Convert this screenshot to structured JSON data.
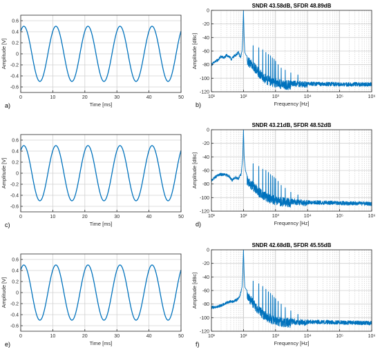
{
  "chart_data": [
    {
      "panel": "a)",
      "type": "line",
      "title": "",
      "xlabel": "Time [ms]",
      "ylabel": "Amplitude [V]",
      "xlim": [
        0,
        50
      ],
      "ylim": [
        -0.7,
        0.7
      ],
      "xticks": [
        0,
        10,
        20,
        30,
        40,
        50
      ],
      "yticks": [
        -0.6,
        -0.4,
        -0.2,
        0,
        0.2,
        0.4,
        0.6
      ],
      "grid": true,
      "series": [
        {
          "kind": "sine",
          "amplitude": 0.5,
          "frequency_hz": 100,
          "phase_deg": 55,
          "x_start": 0,
          "x_end": 50
        }
      ]
    },
    {
      "panel": "b)",
      "type": "line",
      "title": "SNDR 43.58dB, SFDR 48.89dB",
      "xlabel": "Frequency [Hz]",
      "ylabel": "Amplitude [dBc]",
      "xscale": "log",
      "xlim": [
        10,
        1000000
      ],
      "ylim": [
        -120,
        0
      ],
      "xticks": [
        "10¹",
        "10²",
        "10³",
        "10⁴",
        "10⁵",
        "10⁶"
      ],
      "yticks": [
        -120,
        -100,
        -80,
        -60,
        -40,
        -20,
        0
      ],
      "grid": true,
      "series": [
        {
          "profile": [
            [
              10,
              -80
            ],
            [
              12,
              -77
            ],
            [
              16,
              -73
            ],
            [
              20,
              -68
            ],
            [
              25,
              -70
            ],
            [
              30,
              -66
            ],
            [
              35,
              -68
            ],
            [
              42,
              -72
            ],
            [
              50,
              -68
            ],
            [
              60,
              -65
            ],
            [
              70,
              -62
            ],
            [
              80,
              -70
            ],
            [
              90,
              -60
            ],
            [
              95,
              -40
            ],
            [
              100,
              0
            ],
            [
              105,
              -40
            ],
            [
              110,
              -62
            ],
            [
              120,
              -66
            ],
            [
              150,
              -70
            ],
            [
              200,
              -75
            ],
            [
              300,
              -85
            ],
            [
              500,
              -95
            ],
            [
              1000,
              -100
            ],
            [
              2000,
              -103
            ],
            [
              5000,
              -104
            ],
            [
              10000,
              -105
            ],
            [
              100000,
              -106
            ],
            [
              1000000,
              -106
            ]
          ],
          "spurs": [
            [
              200,
              -52
            ],
            [
              300,
              -55
            ],
            [
              400,
              -58
            ],
            [
              500,
              -62
            ],
            [
              600,
              -65
            ],
            [
              700,
              -67
            ],
            [
              800,
              -70
            ],
            [
              900,
              -72
            ],
            [
              1000,
              -75
            ],
            [
              1200,
              -80
            ],
            [
              1500,
              -85
            ],
            [
              2000,
              -88
            ],
            [
              3000,
              -92
            ],
            [
              5000,
              -95
            ]
          ]
        }
      ]
    },
    {
      "panel": "c)",
      "type": "line",
      "title": "",
      "xlabel": "Time [ms]",
      "ylabel": "Amplitude [V]",
      "xlim": [
        0,
        50
      ],
      "ylim": [
        -0.7,
        0.7
      ],
      "xticks": [
        0,
        10,
        20,
        30,
        40,
        50
      ],
      "yticks": [
        -0.6,
        -0.4,
        -0.2,
        0,
        0.2,
        0.4,
        0.6
      ],
      "grid": true,
      "series": [
        {
          "kind": "sine",
          "amplitude": 0.5,
          "frequency_hz": 100,
          "phase_deg": 55,
          "x_start": 0,
          "x_end": 50
        }
      ]
    },
    {
      "panel": "d)",
      "type": "line",
      "title": "SNDR 43.21dB, SFDR 48.52dB",
      "xlabel": "Frequency [Hz]",
      "ylabel": "Amplitude [dBc]",
      "xscale": "log",
      "xlim": [
        10,
        1000000
      ],
      "ylim": [
        -120,
        0
      ],
      "xticks": [
        "10¹",
        "10²",
        "10³",
        "10⁴",
        "10⁵",
        "10⁶"
      ],
      "yticks": [
        -120,
        -100,
        -80,
        -60,
        -40,
        -20,
        0
      ],
      "grid": true,
      "series": [
        {
          "profile": [
            [
              10,
              -75
            ],
            [
              13,
              -70
            ],
            [
              18,
              -66
            ],
            [
              25,
              -66
            ],
            [
              35,
              -68
            ],
            [
              45,
              -75
            ],
            [
              55,
              -70
            ],
            [
              70,
              -72
            ],
            [
              85,
              -65
            ],
            [
              95,
              -40
            ],
            [
              100,
              0
            ],
            [
              105,
              -40
            ],
            [
              115,
              -60
            ],
            [
              130,
              -68
            ],
            [
              160,
              -72
            ],
            [
              200,
              -76
            ],
            [
              300,
              -85
            ],
            [
              500,
              -92
            ],
            [
              1000,
              -98
            ],
            [
              2000,
              -100
            ],
            [
              5000,
              -102
            ],
            [
              10000,
              -104
            ],
            [
              100000,
              -105
            ],
            [
              1000000,
              -106
            ]
          ],
          "spurs": [
            [
              200,
              -50
            ],
            [
              300,
              -54
            ],
            [
              400,
              -58
            ],
            [
              500,
              -60
            ],
            [
              600,
              -63
            ],
            [
              700,
              -66
            ],
            [
              800,
              -68
            ],
            [
              900,
              -70
            ],
            [
              1000,
              -72
            ],
            [
              1200,
              -76
            ],
            [
              1500,
              -82
            ],
            [
              2000,
              -86
            ],
            [
              3000,
              -92
            ],
            [
              5000,
              -96
            ]
          ]
        }
      ]
    },
    {
      "panel": "e)",
      "type": "line",
      "title": "",
      "xlabel": "Time [ms]",
      "ylabel": "Amplitude [V]",
      "xlim": [
        0,
        50
      ],
      "ylim": [
        -0.7,
        0.7
      ],
      "xticks": [
        0,
        10,
        20,
        30,
        40,
        50
      ],
      "yticks": [
        -0.6,
        -0.4,
        -0.2,
        0,
        0.2,
        0.4,
        0.6
      ],
      "grid": true,
      "series": [
        {
          "kind": "sine",
          "amplitude": 0.5,
          "frequency_hz": 100,
          "phase_deg": 55,
          "x_start": 0,
          "x_end": 50
        }
      ]
    },
    {
      "panel": "f)",
      "type": "line",
      "title": "SNDR 42.68dB, SFDR 45.55dB",
      "xlabel": "Frequency [Hz]",
      "ylabel": "Amplitude [dBc]",
      "xscale": "log",
      "xlim": [
        10,
        1000000
      ],
      "ylim": [
        -120,
        0
      ],
      "xticks": [
        "10¹",
        "10²",
        "10³",
        "10⁴",
        "10⁵",
        "10⁶"
      ],
      "yticks": [
        -120,
        -100,
        -80,
        -60,
        -40,
        -20,
        0
      ],
      "grid": true,
      "series": [
        {
          "profile": [
            [
              10,
              -85
            ],
            [
              15,
              -84
            ],
            [
              20,
              -82
            ],
            [
              30,
              -78
            ],
            [
              40,
              -76
            ],
            [
              50,
              -76
            ],
            [
              60,
              -74
            ],
            [
              70,
              -72
            ],
            [
              80,
              -65
            ],
            [
              90,
              -55
            ],
            [
              95,
              -35
            ],
            [
              100,
              0
            ],
            [
              105,
              -35
            ],
            [
              110,
              -55
            ],
            [
              120,
              -58
            ],
            [
              140,
              -62
            ],
            [
              170,
              -68
            ],
            [
              200,
              -72
            ],
            [
              300,
              -82
            ],
            [
              500,
              -92
            ],
            [
              1000,
              -98
            ],
            [
              2000,
              -100
            ],
            [
              5000,
              -102
            ],
            [
              10000,
              -103
            ],
            [
              100000,
              -104
            ],
            [
              1000000,
              -105
            ]
          ],
          "spurs": [
            [
              200,
              -46
            ],
            [
              300,
              -50
            ],
            [
              400,
              -54
            ],
            [
              500,
              -58
            ],
            [
              600,
              -62
            ],
            [
              700,
              -64
            ],
            [
              800,
              -67
            ],
            [
              900,
              -70
            ],
            [
              1000,
              -72
            ],
            [
              1200,
              -76
            ],
            [
              1500,
              -80
            ],
            [
              2000,
              -85
            ],
            [
              3000,
              -90
            ],
            [
              5000,
              -95
            ]
          ]
        }
      ]
    }
  ]
}
